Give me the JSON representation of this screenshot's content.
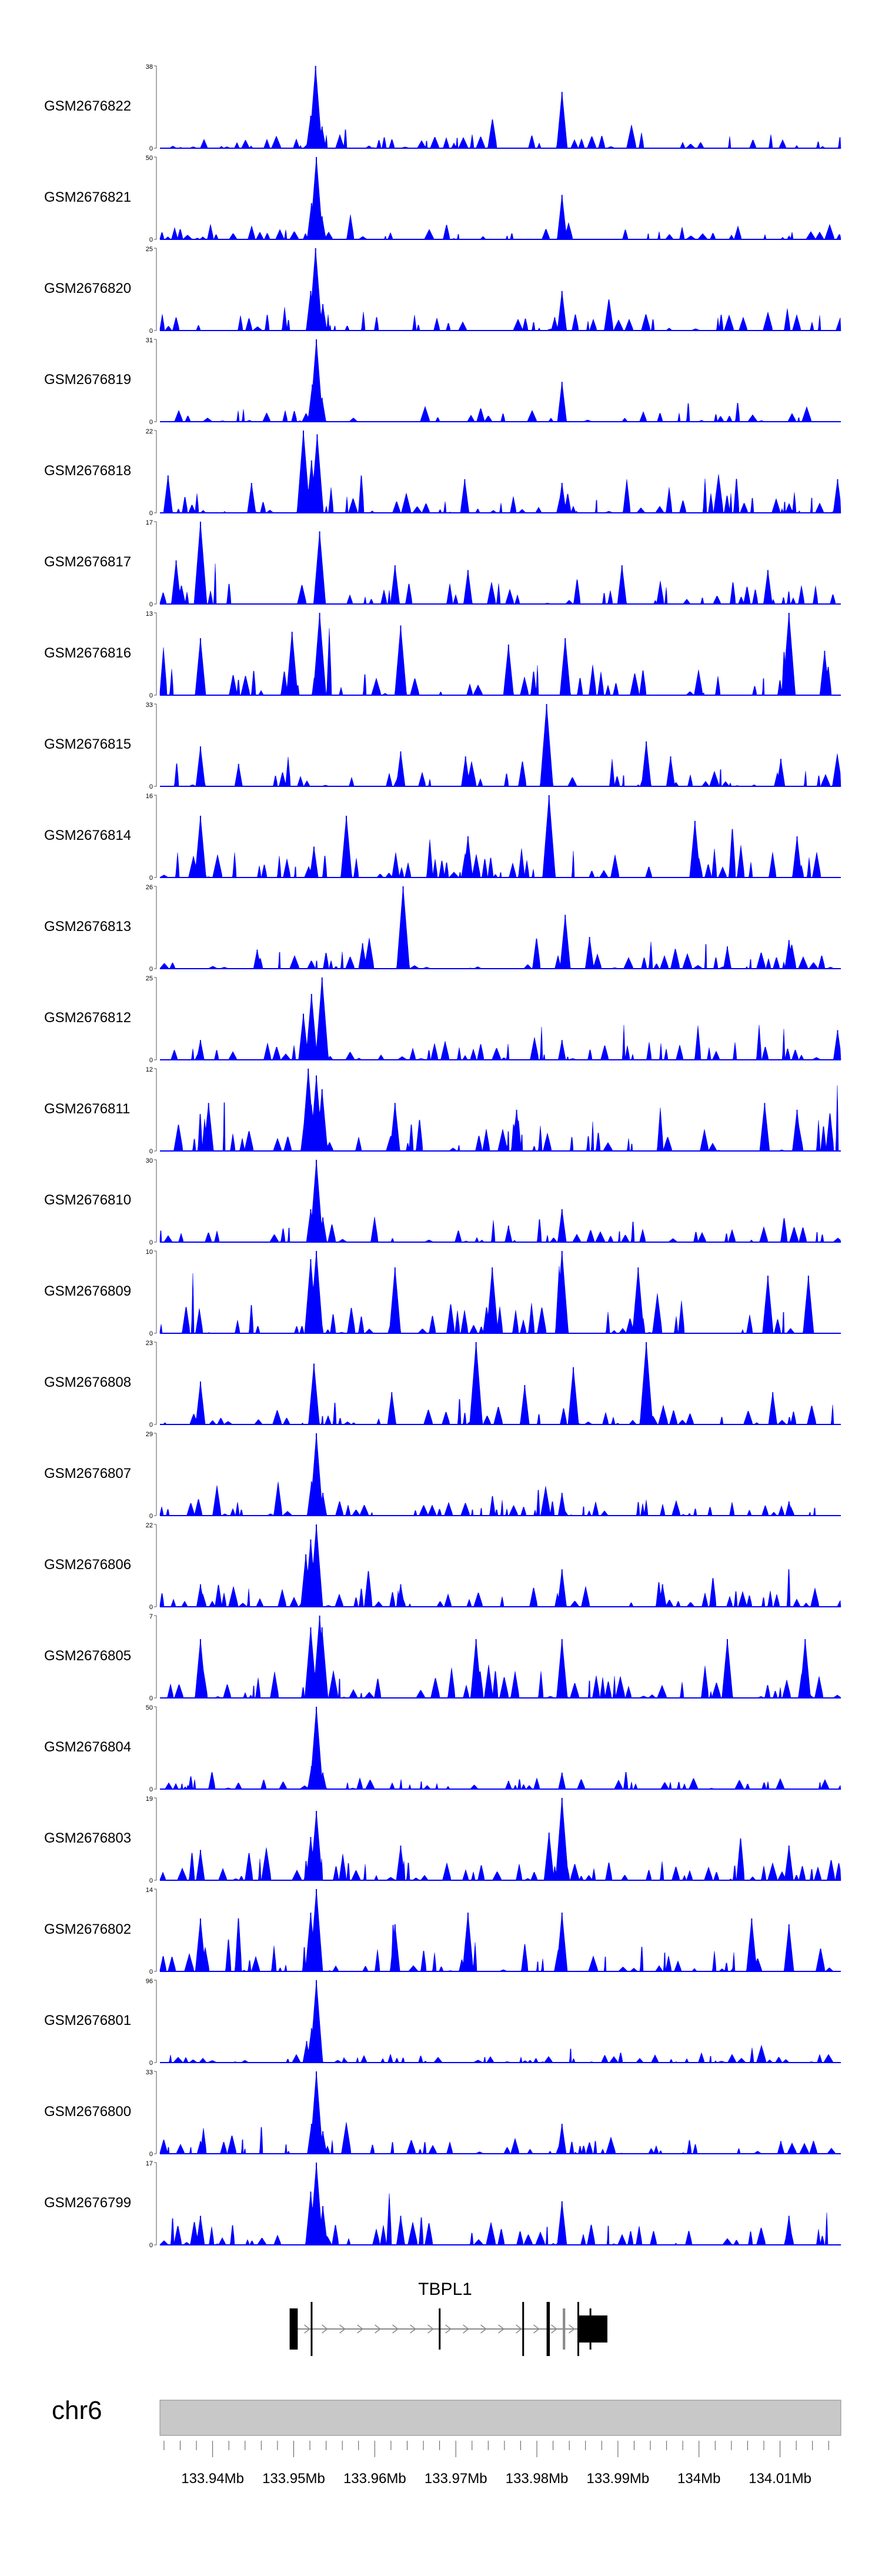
{
  "figure": {
    "chromosome_label": "chr6",
    "gene_label": "TBPL1",
    "x_tick_labels": [
      "133.94Mb",
      "133.95Mb",
      "133.96Mb",
      "133.97Mb",
      "133.98Mb",
      "133.99Mb",
      "134Mb",
      "134.01Mb"
    ]
  },
  "chart_data": {
    "type": "area",
    "title": "",
    "xlabel": "",
    "x_unit": "Mb",
    "xlim": [
      133.9335,
      134.0175
    ],
    "major_ticks": [
      133.94,
      133.95,
      133.96,
      133.97,
      133.98,
      133.99,
      134.0,
      134.01
    ],
    "minor_tick_step": 0.002,
    "color": "#0000ff",
    "gene_model": {
      "name": "TBPL1",
      "strand": "+",
      "start": 133.9495,
      "end": 133.9887,
      "exons": [
        {
          "start": 133.9495,
          "end": 133.9505
        },
        {
          "start": 133.9521,
          "end": 133.9523
        },
        {
          "start": 133.9679,
          "end": 133.9681
        },
        {
          "start": 133.9782,
          "end": 133.9784
        },
        {
          "start": 133.9812,
          "end": 133.9816
        },
        {
          "start": 133.9832,
          "end": 133.9835
        },
        {
          "start": 133.985,
          "end": 133.9852
        },
        {
          "start": 133.9865,
          "end": 133.9867
        },
        {
          "start": 133.9852,
          "end": 133.9887
        }
      ]
    },
    "series": [
      {
        "name": "GSM2676822",
        "ymax": 38,
        "peaks": [
          {
            "x": 133.9527,
            "y": 38
          },
          {
            "x": 133.9521,
            "y": 15
          },
          {
            "x": 133.9535,
            "y": 10
          },
          {
            "x": 133.9831,
            "y": 26
          },
          {
            "x": 133.9828,
            "y": 6
          }
        ]
      },
      {
        "name": "GSM2676821",
        "ymax": 50,
        "peaks": [
          {
            "x": 133.9528,
            "y": 50
          },
          {
            "x": 133.9522,
            "y": 22
          },
          {
            "x": 133.9535,
            "y": 14
          },
          {
            "x": 133.9831,
            "y": 27
          }
        ]
      },
      {
        "name": "GSM2676820",
        "ymax": 25,
        "peaks": [
          {
            "x": 133.9527,
            "y": 25
          },
          {
            "x": 133.9521,
            "y": 12
          },
          {
            "x": 133.9536,
            "y": 8
          },
          {
            "x": 133.9831,
            "y": 12
          },
          {
            "x": 133.9822,
            "y": 4
          }
        ]
      },
      {
        "name": "GSM2676819",
        "ymax": 31,
        "peaks": [
          {
            "x": 133.9528,
            "y": 31
          },
          {
            "x": 133.9523,
            "y": 14
          },
          {
            "x": 133.9535,
            "y": 9
          },
          {
            "x": 133.9831,
            "y": 15
          }
        ]
      },
      {
        "name": "GSM2676818",
        "ymax": 22,
        "peaks": [
          {
            "x": 133.9512,
            "y": 22
          },
          {
            "x": 133.9529,
            "y": 21
          },
          {
            "x": 133.9522,
            "y": 14
          },
          {
            "x": 133.9345,
            "y": 10
          },
          {
            "x": 133.9448,
            "y": 8
          },
          {
            "x": 133.9711,
            "y": 9
          },
          {
            "x": 133.9831,
            "y": 8
          },
          {
            "x": 134.0171,
            "y": 9
          }
        ]
      },
      {
        "name": "GSM2676817",
        "ymax": 17,
        "peaks": [
          {
            "x": 133.9385,
            "y": 17
          },
          {
            "x": 133.9532,
            "y": 15
          },
          {
            "x": 133.9355,
            "y": 9
          },
          {
            "x": 133.9625,
            "y": 8
          },
          {
            "x": 133.9715,
            "y": 7
          },
          {
            "x": 133.9905,
            "y": 8
          },
          {
            "x": 134.0085,
            "y": 7
          }
        ]
      },
      {
        "name": "GSM2676816",
        "ymax": 13,
        "peaks": [
          {
            "x": 134.0111,
            "y": 13
          },
          {
            "x": 133.9532,
            "y": 13
          },
          {
            "x": 133.9632,
            "y": 11
          },
          {
            "x": 133.9498,
            "y": 10
          },
          {
            "x": 133.9385,
            "y": 9
          },
          {
            "x": 133.9835,
            "y": 9
          },
          {
            "x": 133.9765,
            "y": 8
          },
          {
            "x": 134.0155,
            "y": 7
          }
        ]
      },
      {
        "name": "GSM2676815",
        "ymax": 33,
        "peaks": [
          {
            "x": 133.9812,
            "y": 33
          },
          {
            "x": 133.9935,
            "y": 18
          },
          {
            "x": 133.9385,
            "y": 16
          },
          {
            "x": 133.9632,
            "y": 14
          },
          {
            "x": 133.9965,
            "y": 12
          },
          {
            "x": 133.9712,
            "y": 12
          },
          {
            "x": 134.0101,
            "y": 11
          },
          {
            "x": 133.9432,
            "y": 9
          }
        ]
      },
      {
        "name": "GSM2676814",
        "ymax": 16,
        "peaks": [
          {
            "x": 133.9815,
            "y": 16
          },
          {
            "x": 133.9565,
            "y": 12
          },
          {
            "x": 133.9385,
            "y": 12
          },
          {
            "x": 133.9995,
            "y": 11
          },
          {
            "x": 133.9715,
            "y": 8
          },
          {
            "x": 134.0121,
            "y": 8
          },
          {
            "x": 133.9525,
            "y": 6
          }
        ]
      },
      {
        "name": "GSM2676813",
        "ymax": 26,
        "peaks": [
          {
            "x": 133.9635,
            "y": 26
          },
          {
            "x": 133.9835,
            "y": 17
          },
          {
            "x": 133.9865,
            "y": 10
          },
          {
            "x": 134.0111,
            "y": 9
          },
          {
            "x": 133.9585,
            "y": 8
          },
          {
            "x": 133.9455,
            "y": 6
          },
          {
            "x": 134.0035,
            "y": 7
          }
        ]
      },
      {
        "name": "GSM2676812",
        "ymax": 25,
        "peaks": [
          {
            "x": 133.9535,
            "y": 25
          },
          {
            "x": 133.9522,
            "y": 20
          },
          {
            "x": 133.9512,
            "y": 14
          },
          {
            "x": 134.0171,
            "y": 9
          },
          {
            "x": 133.9385,
            "y": 6
          },
          {
            "x": 133.9831,
            "y": 6
          }
        ]
      },
      {
        "name": "GSM2676811",
        "ymax": 12,
        "peaks": [
          {
            "x": 133.9518,
            "y": 12
          },
          {
            "x": 133.9528,
            "y": 11
          },
          {
            "x": 133.9535,
            "y": 9
          },
          {
            "x": 133.9395,
            "y": 7
          },
          {
            "x": 133.9625,
            "y": 7
          },
          {
            "x": 133.9775,
            "y": 6
          },
          {
            "x": 134.0081,
            "y": 7
          },
          {
            "x": 134.0121,
            "y": 6
          }
        ]
      },
      {
        "name": "GSM2676810",
        "ymax": 30,
        "peaks": [
          {
            "x": 133.9528,
            "y": 30
          },
          {
            "x": 133.9521,
            "y": 12
          },
          {
            "x": 133.9536,
            "y": 9
          },
          {
            "x": 133.9831,
            "y": 12
          },
          {
            "x": 133.9765,
            "y": 6
          }
        ]
      },
      {
        "name": "GSM2676809",
        "ymax": 10,
        "peaks": [
          {
            "x": 133.9831,
            "y": 10
          },
          {
            "x": 133.9528,
            "y": 10
          },
          {
            "x": 133.9521,
            "y": 9
          },
          {
            "x": 133.9745,
            "y": 8
          },
          {
            "x": 133.9625,
            "y": 8
          },
          {
            "x": 133.9925,
            "y": 8
          },
          {
            "x": 134.0085,
            "y": 7
          },
          {
            "x": 134.0135,
            "y": 7
          }
        ]
      },
      {
        "name": "GSM2676808",
        "ymax": 23,
        "peaks": [
          {
            "x": 133.9935,
            "y": 23
          },
          {
            "x": 133.9725,
            "y": 23
          },
          {
            "x": 133.9845,
            "y": 16
          },
          {
            "x": 133.9525,
            "y": 17
          },
          {
            "x": 133.9385,
            "y": 12
          },
          {
            "x": 133.9785,
            "y": 11
          },
          {
            "x": 133.9621,
            "y": 9
          },
          {
            "x": 134.0091,
            "y": 9
          }
        ]
      },
      {
        "name": "GSM2676807",
        "ymax": 29,
        "peaks": [
          {
            "x": 133.9528,
            "y": 29
          },
          {
            "x": 133.9522,
            "y": 12
          },
          {
            "x": 133.9536,
            "y": 8
          },
          {
            "x": 133.9831,
            "y": 8
          },
          {
            "x": 134.0111,
            "y": 5
          }
        ]
      },
      {
        "name": "GSM2676806",
        "ymax": 22,
        "peaks": [
          {
            "x": 133.9528,
            "y": 22
          },
          {
            "x": 133.9521,
            "y": 18
          },
          {
            "x": 133.9515,
            "y": 14
          },
          {
            "x": 133.9831,
            "y": 10
          },
          {
            "x": 133.9385,
            "y": 6
          },
          {
            "x": 133.9632,
            "y": 6
          },
          {
            "x": 133.9955,
            "y": 6
          }
        ]
      },
      {
        "name": "GSM2676805",
        "ymax": 7,
        "peaks": [
          {
            "x": 133.9532,
            "y": 7
          },
          {
            "x": 133.9521,
            "y": 6
          },
          {
            "x": 133.9385,
            "y": 5
          },
          {
            "x": 133.9535,
            "y": 6
          },
          {
            "x": 133.9725,
            "y": 5
          },
          {
            "x": 133.9831,
            "y": 5
          },
          {
            "x": 134.0035,
            "y": 5
          },
          {
            "x": 134.0131,
            "y": 5
          }
        ]
      },
      {
        "name": "GSM2676804",
        "ymax": 50,
        "peaks": [
          {
            "x": 133.9528,
            "y": 50
          },
          {
            "x": 133.9522,
            "y": 14
          },
          {
            "x": 133.9536,
            "y": 10
          },
          {
            "x": 133.9831,
            "y": 10
          },
          {
            "x": 133.9765,
            "y": 5
          }
        ]
      },
      {
        "name": "GSM2676803",
        "ymax": 19,
        "peaks": [
          {
            "x": 133.9831,
            "y": 19
          },
          {
            "x": 133.9528,
            "y": 16
          },
          {
            "x": 133.9521,
            "y": 10
          },
          {
            "x": 133.9815,
            "y": 11
          },
          {
            "x": 133.9385,
            "y": 7
          },
          {
            "x": 133.9632,
            "y": 8
          },
          {
            "x": 134.0111,
            "y": 8
          }
        ]
      },
      {
        "name": "GSM2676802",
        "ymax": 14,
        "peaks": [
          {
            "x": 133.9528,
            "y": 14
          },
          {
            "x": 133.9521,
            "y": 10
          },
          {
            "x": 133.9715,
            "y": 10
          },
          {
            "x": 133.9831,
            "y": 10
          },
          {
            "x": 133.9385,
            "y": 9
          },
          {
            "x": 133.9625,
            "y": 8
          },
          {
            "x": 134.0065,
            "y": 9
          },
          {
            "x": 134.0111,
            "y": 8
          }
        ]
      },
      {
        "name": "GSM2676801",
        "ymax": 96,
        "peaks": [
          {
            "x": 133.9528,
            "y": 96
          },
          {
            "x": 133.9522,
            "y": 40
          },
          {
            "x": 133.9516,
            "y": 25
          },
          {
            "x": 133.9563,
            "y": 4
          }
        ]
      },
      {
        "name": "GSM2676800",
        "ymax": 33,
        "peaks": [
          {
            "x": 133.9528,
            "y": 33
          },
          {
            "x": 133.9522,
            "y": 12
          },
          {
            "x": 133.9536,
            "y": 9
          },
          {
            "x": 133.9831,
            "y": 12
          },
          {
            "x": 133.9385,
            "y": 5
          },
          {
            "x": 134.0101,
            "y": 5
          }
        ]
      },
      {
        "name": "GSM2676799",
        "ymax": 17,
        "peaks": [
          {
            "x": 133.9528,
            "y": 17
          },
          {
            "x": 133.9521,
            "y": 11
          },
          {
            "x": 133.9536,
            "y": 8
          },
          {
            "x": 133.9831,
            "y": 9
          },
          {
            "x": 133.9385,
            "y": 6
          },
          {
            "x": 133.9632,
            "y": 6
          },
          {
            "x": 134.0111,
            "y": 6
          }
        ]
      }
    ]
  }
}
